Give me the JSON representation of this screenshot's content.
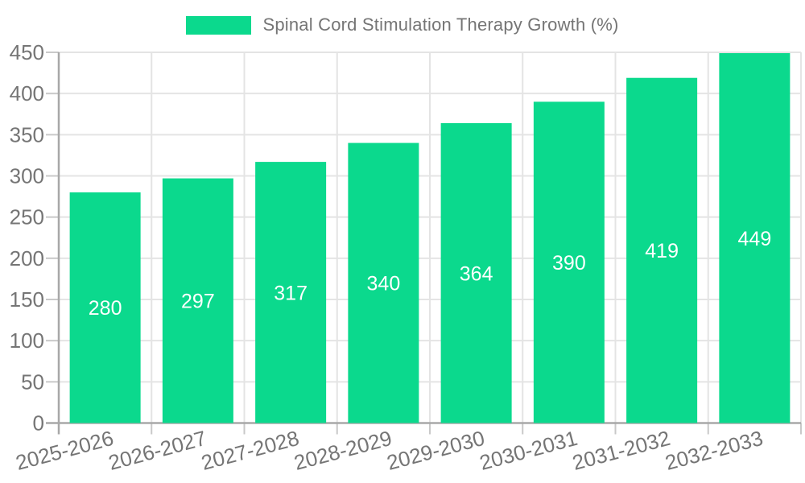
{
  "legend": {
    "label": "Spinal Cord Stimulation Therapy Growth (%)"
  },
  "chart_data": {
    "type": "bar",
    "title": "Spinal Cord Stimulation Therapy Growth (%)",
    "categories": [
      "2025-2026",
      "2026-2027",
      "2027-2028",
      "2028-2029",
      "2029-2030",
      "2030-2031",
      "2031-2032",
      "2032-2033"
    ],
    "values": [
      280,
      297,
      317,
      340,
      364,
      390,
      419,
      449
    ],
    "value_labels": [
      "280",
      "297",
      "317",
      "340",
      "364",
      "390",
      "419",
      "449"
    ],
    "xlabel": "",
    "ylabel": "",
    "ylim": [
      0,
      450
    ],
    "ytick_step": 50,
    "yticks": [
      0,
      50,
      100,
      150,
      200,
      250,
      300,
      350,
      400,
      450
    ],
    "grid": true,
    "legend_position": "top",
    "colors": {
      "bar": "#0BD98D",
      "grid_line": "#e4e4e4",
      "axis_line": "#a8a8a8",
      "tick_line": "#c9c9c9",
      "axis_text": "#757575",
      "bar_label_text": "#ffffff",
      "background": "#ffffff"
    }
  }
}
